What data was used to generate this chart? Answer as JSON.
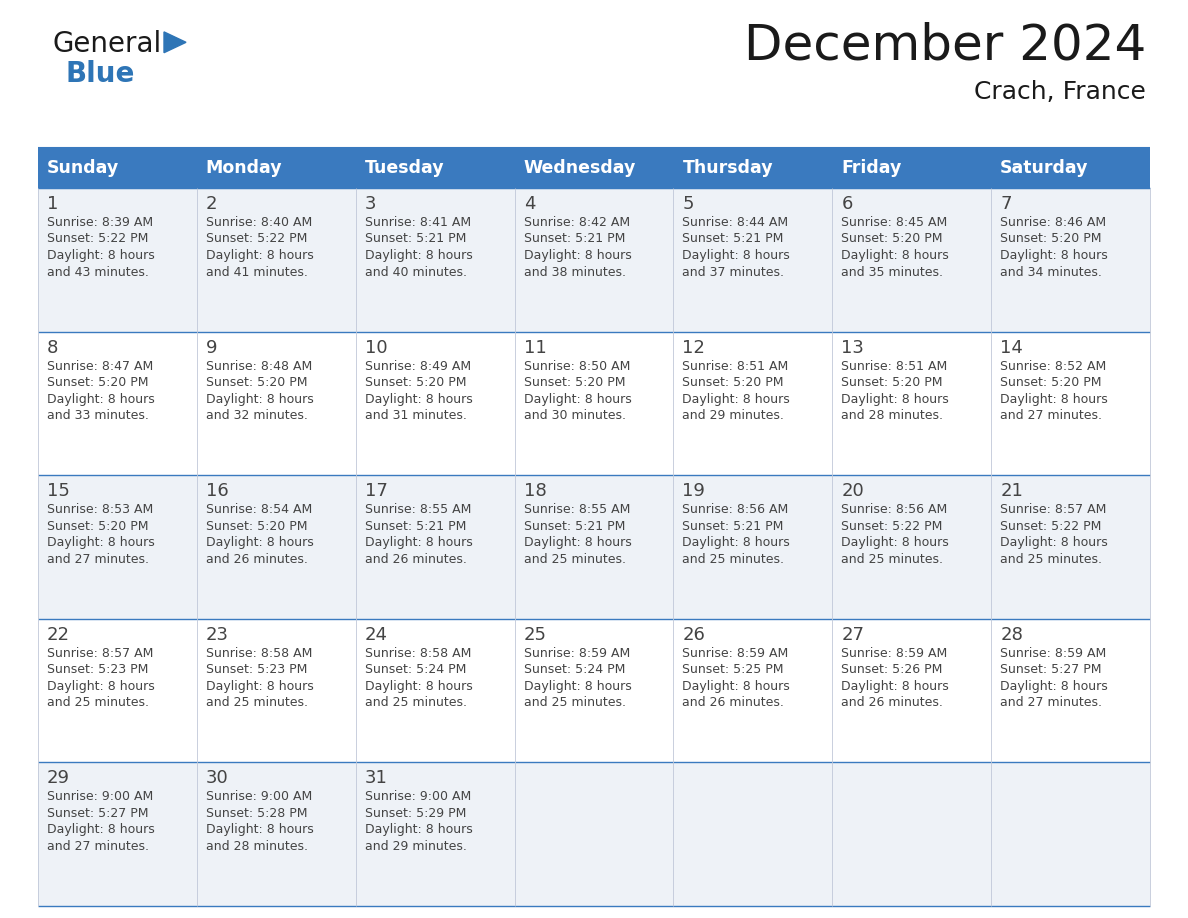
{
  "title": "December 2024",
  "subtitle": "Crach, France",
  "header_color": "#3a7abf",
  "header_text_color": "#ffffff",
  "day_names": [
    "Sunday",
    "Monday",
    "Tuesday",
    "Wednesday",
    "Thursday",
    "Friday",
    "Saturday"
  ],
  "background_color": "#ffffff",
  "cell_bg_even": "#eef2f7",
  "cell_bg_odd": "#ffffff",
  "cell_border_color": "#3a7abf",
  "text_color": "#444444",
  "weeks": [
    [
      {
        "day": 1,
        "sunrise": "8:39 AM",
        "sunset": "5:22 PM",
        "daylight_min": "43"
      },
      {
        "day": 2,
        "sunrise": "8:40 AM",
        "sunset": "5:22 PM",
        "daylight_min": "41"
      },
      {
        "day": 3,
        "sunrise": "8:41 AM",
        "sunset": "5:21 PM",
        "daylight_min": "40"
      },
      {
        "day": 4,
        "sunrise": "8:42 AM",
        "sunset": "5:21 PM",
        "daylight_min": "38"
      },
      {
        "day": 5,
        "sunrise": "8:44 AM",
        "sunset": "5:21 PM",
        "daylight_min": "37"
      },
      {
        "day": 6,
        "sunrise": "8:45 AM",
        "sunset": "5:20 PM",
        "daylight_min": "35"
      },
      {
        "day": 7,
        "sunrise": "8:46 AM",
        "sunset": "5:20 PM",
        "daylight_min": "34"
      }
    ],
    [
      {
        "day": 8,
        "sunrise": "8:47 AM",
        "sunset": "5:20 PM",
        "daylight_min": "33"
      },
      {
        "day": 9,
        "sunrise": "8:48 AM",
        "sunset": "5:20 PM",
        "daylight_min": "32"
      },
      {
        "day": 10,
        "sunrise": "8:49 AM",
        "sunset": "5:20 PM",
        "daylight_min": "31"
      },
      {
        "day": 11,
        "sunrise": "8:50 AM",
        "sunset": "5:20 PM",
        "daylight_min": "30"
      },
      {
        "day": 12,
        "sunrise": "8:51 AM",
        "sunset": "5:20 PM",
        "daylight_min": "29"
      },
      {
        "day": 13,
        "sunrise": "8:51 AM",
        "sunset": "5:20 PM",
        "daylight_min": "28"
      },
      {
        "day": 14,
        "sunrise": "8:52 AM",
        "sunset": "5:20 PM",
        "daylight_min": "27"
      }
    ],
    [
      {
        "day": 15,
        "sunrise": "8:53 AM",
        "sunset": "5:20 PM",
        "daylight_min": "27"
      },
      {
        "day": 16,
        "sunrise": "8:54 AM",
        "sunset": "5:20 PM",
        "daylight_min": "26"
      },
      {
        "day": 17,
        "sunrise": "8:55 AM",
        "sunset": "5:21 PM",
        "daylight_min": "26"
      },
      {
        "day": 18,
        "sunrise": "8:55 AM",
        "sunset": "5:21 PM",
        "daylight_min": "25"
      },
      {
        "day": 19,
        "sunrise": "8:56 AM",
        "sunset": "5:21 PM",
        "daylight_min": "25"
      },
      {
        "day": 20,
        "sunrise": "8:56 AM",
        "sunset": "5:22 PM",
        "daylight_min": "25"
      },
      {
        "day": 21,
        "sunrise": "8:57 AM",
        "sunset": "5:22 PM",
        "daylight_min": "25"
      }
    ],
    [
      {
        "day": 22,
        "sunrise": "8:57 AM",
        "sunset": "5:23 PM",
        "daylight_min": "25"
      },
      {
        "day": 23,
        "sunrise": "8:58 AM",
        "sunset": "5:23 PM",
        "daylight_min": "25"
      },
      {
        "day": 24,
        "sunrise": "8:58 AM",
        "sunset": "5:24 PM",
        "daylight_min": "25"
      },
      {
        "day": 25,
        "sunrise": "8:59 AM",
        "sunset": "5:24 PM",
        "daylight_min": "25"
      },
      {
        "day": 26,
        "sunrise": "8:59 AM",
        "sunset": "5:25 PM",
        "daylight_min": "26"
      },
      {
        "day": 27,
        "sunrise": "8:59 AM",
        "sunset": "5:26 PM",
        "daylight_min": "26"
      },
      {
        "day": 28,
        "sunrise": "8:59 AM",
        "sunset": "5:27 PM",
        "daylight_min": "27"
      }
    ],
    [
      {
        "day": 29,
        "sunrise": "9:00 AM",
        "sunset": "5:27 PM",
        "daylight_min": "27"
      },
      {
        "day": 30,
        "sunrise": "9:00 AM",
        "sunset": "5:28 PM",
        "daylight_min": "28"
      },
      {
        "day": 31,
        "sunrise": "9:00 AM",
        "sunset": "5:29 PM",
        "daylight_min": "29"
      },
      null,
      null,
      null,
      null
    ]
  ],
  "logo_color_general": "#1a1a1a",
  "logo_color_blue": "#2e75b6",
  "logo_triangle_color": "#2e75b6",
  "title_color": "#1a1a1a",
  "subtitle_color": "#1a1a1a"
}
